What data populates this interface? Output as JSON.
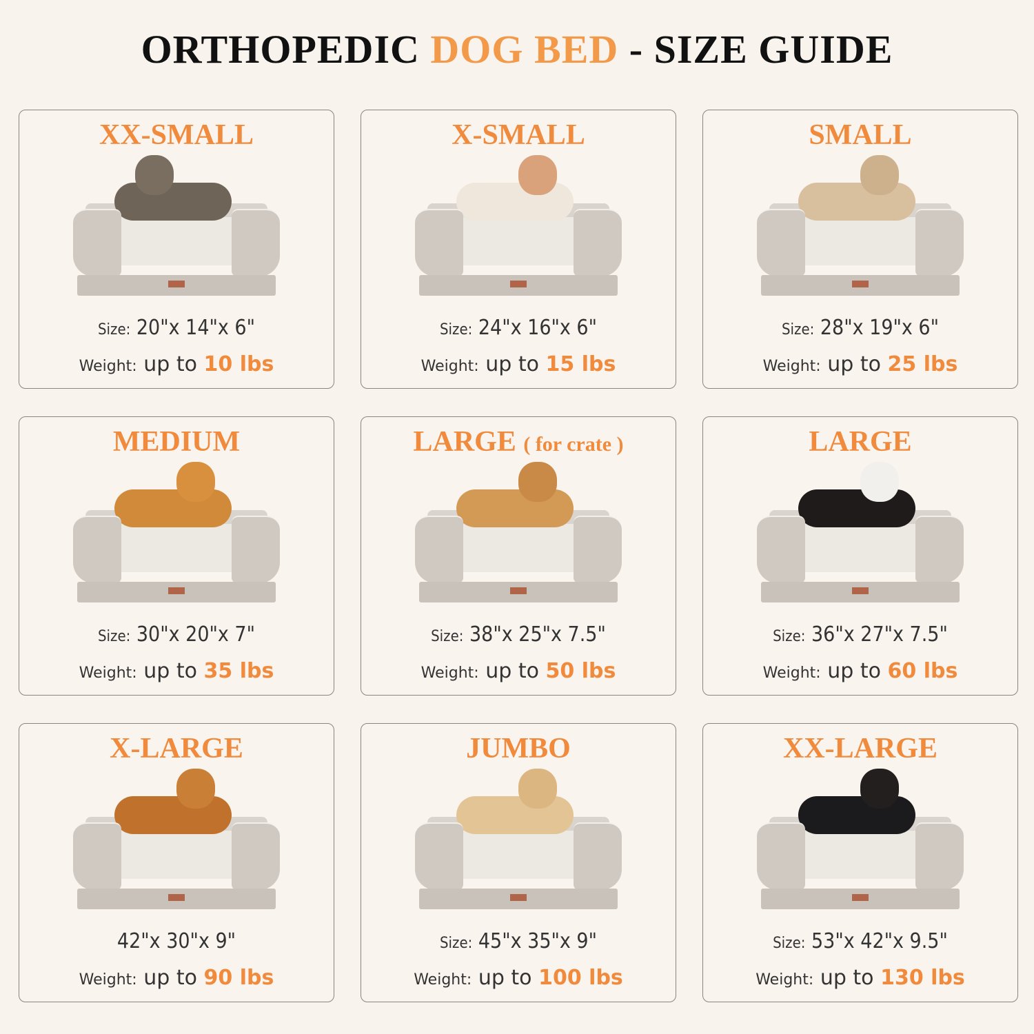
{
  "title": {
    "part1": "ORTHOPEDIC ",
    "accent": "DOG BED",
    "part2": " - SIZE GUIDE"
  },
  "colors": {
    "accent": "#f08a3c",
    "background": "#f9f3ee",
    "text": "#333333",
    "bed": "#d3cdc6"
  },
  "cards": [
    {
      "title": "XX-SMALL",
      "note": "",
      "pet": "tabby-cat",
      "pet_color": "#6e6458",
      "pet_head_color": "#7a6e60",
      "size_label": "Size:",
      "size": "20\"x 14\"x 6\"",
      "weight_label": "Weight:",
      "weight_prefix": "up to",
      "weight": "10 lbs"
    },
    {
      "title": "X-SMALL",
      "note": "",
      "pet": "small-white-dog",
      "pet_color": "#efe6dc",
      "pet_head_color": "#d9a27a",
      "size_label": "Size:",
      "size": "24\"x 16\"x 6\"",
      "weight_label": "Weight:",
      "weight_prefix": "up to",
      "weight": "15 lbs"
    },
    {
      "title": "SMALL",
      "note": "",
      "pet": "french-bulldog",
      "pet_color": "#d8bf9e",
      "pet_head_color": "#cdb08c",
      "size_label": "Size:",
      "size": "28\"x 19\"x 6\"",
      "weight_label": "Weight:",
      "weight_prefix": "up to",
      "weight": "25 lbs"
    },
    {
      "title": "MEDIUM",
      "note": "",
      "pet": "corgi",
      "pet_color": "#d08a3a",
      "pet_head_color": "#d9903e",
      "size_label": "Size:",
      "size": "30\"x 20\"x 7\"",
      "weight_label": "Weight:",
      "weight_prefix": "up to",
      "weight": "35 lbs"
    },
    {
      "title": "LARGE",
      "note": "( for crate )",
      "pet": "shiba-inu",
      "pet_color": "#d39a55",
      "pet_head_color": "#c98a48",
      "size_label": "Size:",
      "size": "38\"x 25\"x 7.5\"",
      "weight_label": "Weight:",
      "weight_prefix": "up to",
      "weight": "50 lbs"
    },
    {
      "title": "LARGE",
      "note": "",
      "pet": "australian-shepherd",
      "pet_color": "#1e1b1a",
      "pet_head_color": "#f2f0ec",
      "size_label": "Size:",
      "size": "36\"x 27\"x 7.5\"",
      "weight_label": "Weight:",
      "weight_prefix": "up to",
      "weight": "60 lbs"
    },
    {
      "title": "X-LARGE",
      "note": "",
      "pet": "golden-retriever",
      "pet_color": "#c0722c",
      "pet_head_color": "#c98036",
      "size_label": "",
      "size": "42\"x 30\"x 9\"",
      "weight_label": "Weight:",
      "weight_prefix": "up to",
      "weight": "90 lbs"
    },
    {
      "title": "JUMBO",
      "note": "",
      "pet": "labrador",
      "pet_color": "#e3c494",
      "pet_head_color": "#dcb680",
      "size_label": "Size:",
      "size": "45\"x 35\"x 9\"",
      "weight_label": "Weight:",
      "weight_prefix": "up to",
      "weight": "100 lbs"
    },
    {
      "title": "XX-LARGE",
      "note": "",
      "pet": "rottweiler-with-chihuahua",
      "pet_color": "#1b1a1c",
      "pet_head_color": "#231f1e",
      "size_label": "Size:",
      "size": "53\"x 42\"x 9.5\"",
      "weight_label": "Weight:",
      "weight_prefix": "up to",
      "weight": "130 lbs"
    }
  ]
}
